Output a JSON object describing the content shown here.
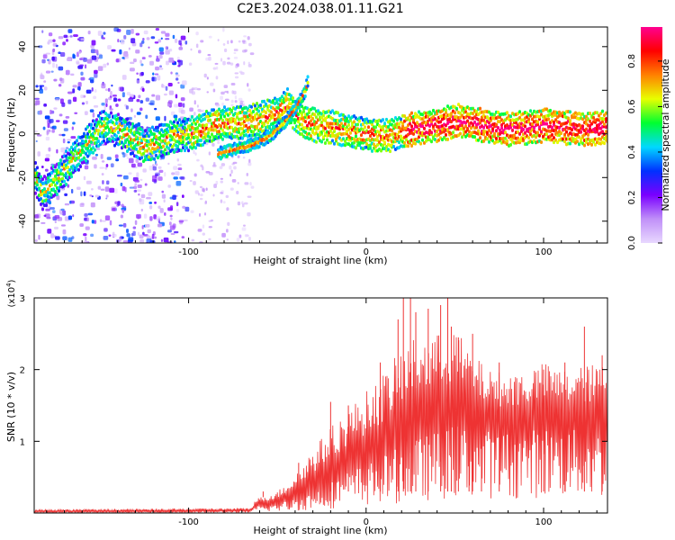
{
  "title": "C2E3.2024.038.01.11.G21",
  "colorbar": {
    "label": "Normalized spectral amplitude",
    "ticks": [
      "0.0",
      "0.2",
      "0.4",
      "0.6",
      "0.8"
    ],
    "tick_values": [
      0.0,
      0.2,
      0.4,
      0.6,
      0.8
    ],
    "range": [
      0,
      0.95
    ],
    "colors": [
      "#e8d8ff",
      "#c090f8",
      "#7a00ff",
      "#0030ff",
      "#00d8ff",
      "#00ff30",
      "#e8ff00",
      "#ff8000",
      "#ff0000",
      "#ff0090"
    ]
  },
  "chart_data": [
    {
      "type": "heatmap",
      "xlabel": "Height of straight line (km)",
      "ylabel": "Frequency (Hz)",
      "xlim": [
        -187,
        136
      ],
      "ylim": [
        -50,
        49
      ],
      "xticks": [
        -100,
        0,
        100
      ],
      "xtick_labels": [
        "-100",
        "0",
        "100"
      ],
      "yticks": [
        -40,
        -20,
        0,
        20,
        40
      ],
      "ytick_labels": [
        "-40",
        "-20",
        "0",
        "20",
        "40"
      ],
      "ridge_x": [
        -187,
        -183,
        -150,
        -140,
        -133,
        -128,
        -125,
        -120,
        -115,
        -110,
        -100,
        -90,
        -80,
        -70,
        -60,
        -50,
        -45,
        -40,
        -35,
        -30,
        -20,
        -10,
        0,
        10,
        20,
        30,
        40,
        50,
        60,
        70,
        80,
        90,
        100,
        110,
        120,
        136
      ],
      "ridge_y": [
        -20,
        -28,
        3,
        2,
        -2,
        -4,
        -6,
        -4,
        -3,
        -1,
        0,
        3,
        5,
        5,
        7,
        10,
        13,
        8,
        5,
        4,
        3,
        1,
        0,
        -1,
        1,
        3,
        4,
        6,
        5,
        3,
        2,
        3,
        4,
        3,
        2,
        3
      ],
      "branch_x": [
        -84,
        -75,
        -65,
        -55,
        -48,
        -43,
        -38,
        -35,
        -33
      ],
      "branch_y": [
        -9,
        -7,
        -5,
        -1,
        4,
        9,
        15,
        20,
        26
      ]
    },
    {
      "type": "line",
      "xlabel": "Height of straight line (km)",
      "ylabel": "SNR (10 * v/v)",
      "y_multiplier": "(x10",
      "y_multiplier_exp": "4",
      "y_multiplier_close": ")",
      "xlim": [
        -187,
        136
      ],
      "ylim": [
        0,
        3
      ],
      "xticks": [
        -100,
        0,
        100
      ],
      "xtick_labels": [
        "-100",
        "0",
        "100"
      ],
      "yticks": [
        1,
        2,
        3
      ],
      "ytick_labels": [
        "1",
        "2",
        "3"
      ],
      "color": "#ee3333",
      "envelope_x": [
        -187,
        -120,
        -65,
        -62,
        -50,
        -40,
        -30,
        -20,
        -10,
        0,
        10,
        20,
        30,
        40,
        50,
        60,
        70,
        80,
        90,
        100,
        110,
        120,
        136
      ],
      "envelope_low": [
        0.01,
        0.01,
        0.02,
        0.08,
        0.1,
        0.15,
        0.2,
        0.3,
        0.45,
        0.5,
        0.6,
        0.7,
        0.8,
        0.9,
        1.0,
        1.05,
        1.0,
        1.0,
        1.0,
        1.05,
        1.05,
        1.0,
        1.0
      ],
      "envelope_high": [
        0.05,
        0.06,
        0.07,
        0.2,
        0.3,
        0.55,
        0.9,
        1.2,
        1.45,
        1.7,
        1.95,
        2.3,
        2.5,
        2.5,
        2.6,
        2.2,
        2.0,
        1.95,
        2.0,
        2.1,
        2.0,
        2.05,
        2.1
      ],
      "spike_x": [
        -58,
        -38,
        -20,
        -10,
        8,
        18,
        21,
        25,
        28,
        35,
        42,
        46,
        48,
        52,
        58,
        60,
        65,
        75,
        100,
        112,
        123,
        133
      ],
      "spike_y": [
        0.22,
        0.7,
        1.55,
        1.5,
        2.1,
        2.7,
        3.0,
        3.0,
        2.8,
        2.85,
        2.9,
        3.0,
        2.6,
        2.45,
        2.05,
        2.5,
        1.9,
        2.1,
        2.0,
        2.1,
        2.6,
        2.2
      ]
    }
  ]
}
